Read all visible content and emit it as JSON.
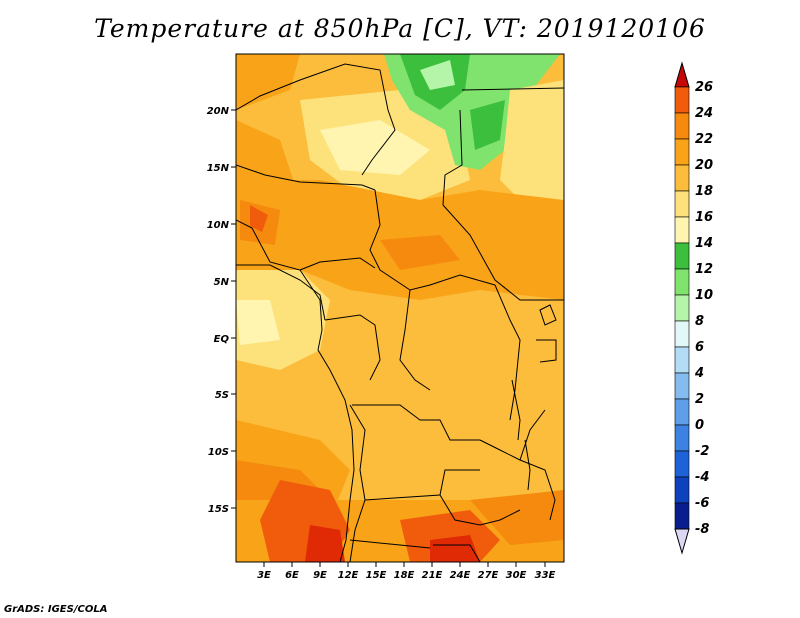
{
  "title": "Temperature at 850hPa [C], VT: 2019120106",
  "footer": "GrADS: IGES/COLA",
  "lat_labels": [
    "20N",
    "15N",
    "10N",
    "5N",
    "EQ",
    "5S",
    "10S",
    "15S"
  ],
  "lon_labels": [
    "3E",
    "6E",
    "9E",
    "12E",
    "15E",
    "18E",
    "21E",
    "24E",
    "27E",
    "30E",
    "33E"
  ],
  "colorbar": {
    "labels": [
      "26",
      "24",
      "22",
      "20",
      "18",
      "16",
      "14",
      "12",
      "10",
      "8",
      "6",
      "4",
      "2",
      "0",
      "-2",
      "-4",
      "-6",
      "-8"
    ],
    "colors": [
      "#e02a05",
      "#f05c0b",
      "#f58a0f",
      "#f9a318",
      "#fbbd3b",
      "#fde27c",
      "#fff5b0",
      "#3cbf3c",
      "#7fe36e",
      "#b4f5a9",
      "#e2f8f8",
      "#b3dcf6",
      "#85bcf0",
      "#5f9fea",
      "#3d82e3",
      "#1d63d7",
      "#0d42bc",
      "#081e8e"
    ],
    "top_arrow_color": "#c40707",
    "bottom_arrow_color": "#dcd8f4"
  }
}
